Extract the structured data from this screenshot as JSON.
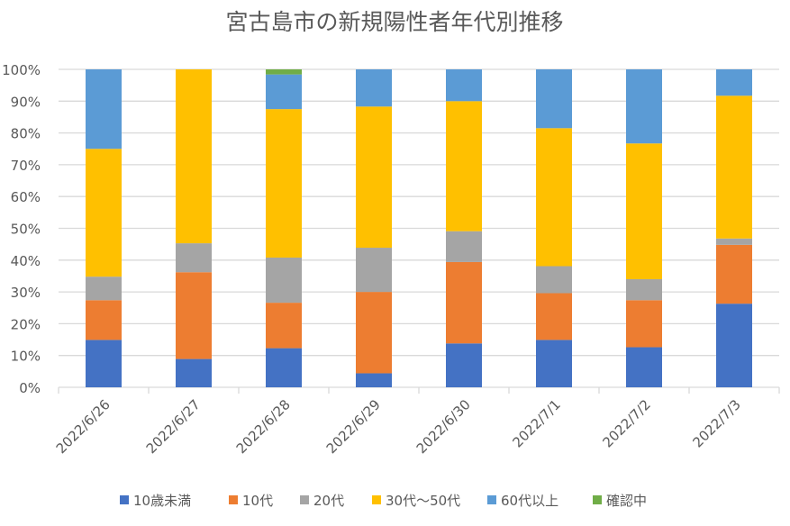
{
  "chart_data": {
    "type": "bar",
    "stacked": "percent",
    "title": "宮古島市の新規陽性者年代別推移",
    "xlabel": "",
    "ylabel": "",
    "ylim": [
      0,
      100
    ],
    "yticks": [
      "0%",
      "10%",
      "20%",
      "30%",
      "40%",
      "50%",
      "60%",
      "70%",
      "80%",
      "90%",
      "100%"
    ],
    "grid": true,
    "legend_position": "bottom",
    "categories": [
      "2022/6/26",
      "2022/6/27",
      "2022/6/28",
      "2022/6/29",
      "2022/6/30",
      "2022/7/1",
      "2022/7/2",
      "2022/7/3"
    ],
    "series": [
      {
        "name": "10歳未満",
        "color": "#4472C4",
        "values": [
          14.9,
          8.9,
          12.3,
          4.4,
          13.8,
          14.9,
          12.6,
          26.3
        ]
      },
      {
        "name": "10代",
        "color": "#ED7D31",
        "values": [
          12.5,
          27.3,
          14.3,
          25.6,
          25.6,
          14.7,
          14.8,
          18.5
        ]
      },
      {
        "name": "20代",
        "color": "#A5A5A5",
        "values": [
          7.4,
          9.1,
          14.2,
          13.9,
          9.7,
          8.5,
          6.6,
          2.0
        ]
      },
      {
        "name": "30代～50代",
        "color": "#FFC000",
        "values": [
          40.2,
          54.7,
          46.7,
          44.4,
          40.9,
          43.4,
          42.7,
          44.9
        ]
      },
      {
        "name": "60代以上",
        "color": "#5B9BD5",
        "values": [
          25.0,
          0,
          10.9,
          11.7,
          10.0,
          18.5,
          23.3,
          8.3
        ]
      },
      {
        "name": "確認中",
        "color": "#70AD47",
        "values": [
          0,
          0,
          1.6,
          0,
          0,
          0,
          0,
          0
        ]
      }
    ]
  }
}
